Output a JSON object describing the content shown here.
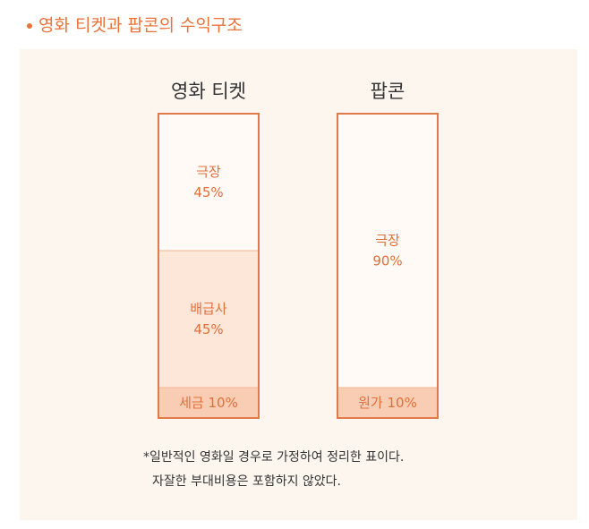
{
  "chart_data": {
    "type": "stacked_bar",
    "title": "영화 티켓과 팝콘의 수익구조",
    "categories": [
      "영화 티켓",
      "팝콘"
    ],
    "series": [
      {
        "name": "세금",
        "color": "#f9cdb3",
        "values": [
          10,
          null
        ],
        "value_labels": [
          "10%",
          null
        ]
      },
      {
        "name": "원가",
        "color": "#f9cdb3",
        "values": [
          null,
          10
        ],
        "value_labels": [
          null,
          "10%"
        ]
      },
      {
        "name": "배급사",
        "color": "#fde7d9",
        "values": [
          45,
          null
        ],
        "value_labels": [
          "45%",
          null
        ]
      },
      {
        "name": "극장",
        "color": "#fffaf6",
        "values": [
          45,
          90
        ],
        "value_labels": [
          "45%",
          "90%"
        ]
      }
    ],
    "ylim": [
      0,
      100
    ],
    "border_color": "#e07a4a",
    "notes": [
      "*일반적인 영화일 경우로 가정하여 정리한 표이다.",
      "자잘한 부대비용은 포함하지 않았다."
    ]
  }
}
